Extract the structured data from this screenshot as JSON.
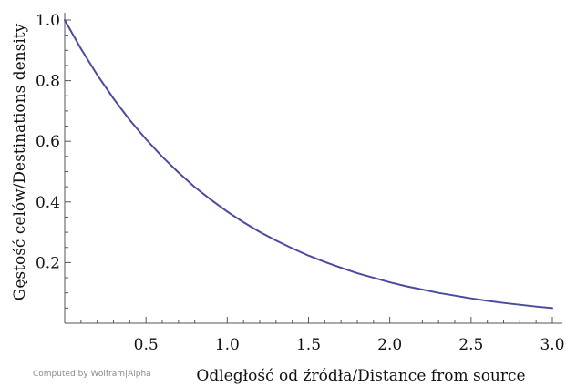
{
  "chart_data": {
    "type": "line",
    "xlabel": "Odległość od źródła/Distance from source",
    "ylabel": "Gęstość celów/Destinations density",
    "xlim": [
      0,
      3.0
    ],
    "ylim": [
      0,
      1.0
    ],
    "x_ticks": [
      "0.5",
      "1.0",
      "1.5",
      "2.0",
      "2.5",
      "3.0"
    ],
    "y_ticks": [
      "0.2",
      "0.4",
      "0.6",
      "0.8",
      "1.0"
    ],
    "grid": false,
    "series": [
      {
        "color": "#4a4a9e",
        "x": [
          0.0,
          0.1,
          0.2,
          0.3,
          0.4,
          0.5,
          0.6,
          0.7,
          0.8,
          0.9,
          1.0,
          1.1,
          1.2,
          1.3,
          1.4,
          1.5,
          1.6,
          1.7,
          1.8,
          1.9,
          2.0,
          2.1,
          2.2,
          2.3,
          2.4,
          2.5,
          2.6,
          2.7,
          2.8,
          2.9,
          3.0
        ],
        "y": [
          1.0,
          0.905,
          0.819,
          0.741,
          0.67,
          0.607,
          0.549,
          0.497,
          0.449,
          0.407,
          0.368,
          0.333,
          0.301,
          0.273,
          0.247,
          0.223,
          0.202,
          0.183,
          0.165,
          0.15,
          0.135,
          0.122,
          0.111,
          0.1,
          0.091,
          0.082,
          0.074,
          0.067,
          0.061,
          0.055,
          0.05
        ]
      }
    ]
  },
  "credit": "Computed by Wolfram|Alpha"
}
